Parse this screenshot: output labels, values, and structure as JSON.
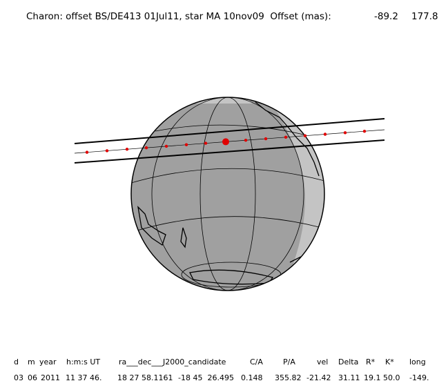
{
  "header": {
    "title": "Charon: offset BS/DE413 01Jul11, star MA 10nov09  Offset (mas):",
    "offset_x": "-89.2",
    "offset_y": "177.8"
  },
  "table": {
    "columns": [
      "d",
      "m",
      "year",
      "h:m:s UT",
      "ra___dec___J2000_candidate",
      "C/A",
      "P/A",
      "vel",
      "Delta",
      "R*",
      "K*",
      "long"
    ],
    "rows": [
      [
        "03",
        "06",
        "2011",
        "11 37 46.",
        "18 27 58.1161",
        "-18 45  26.495",
        "0.148",
        "355.82",
        "-21.42",
        "31.11",
        "19.1",
        "50.0",
        "-149."
      ]
    ]
  }
}
